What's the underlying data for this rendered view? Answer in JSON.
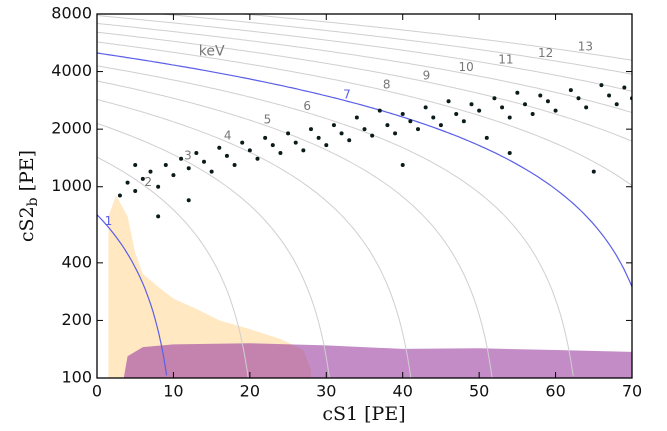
{
  "chart_data": {
    "type": "scatter",
    "xlabel": "cS1 [PE]",
    "ylabel": "cS2",
    "ylabel_sub": "b",
    "ylabel_unit": "[PE]",
    "xlim": [
      0,
      70
    ],
    "xticks": [
      0,
      10,
      20,
      30,
      40,
      50,
      60,
      70
    ],
    "ylim": [
      100,
      8000
    ],
    "yticks": [
      100,
      200,
      400,
      1000,
      2000,
      4000,
      8000
    ],
    "log_y": true,
    "contour_unit": "keV",
    "energy_contours": [
      1,
      2,
      3,
      4,
      5,
      6,
      7,
      8,
      9,
      10,
      11,
      12,
      13
    ],
    "highlight_contours": [
      1,
      7
    ],
    "contour_color": "#cfcfcf",
    "highlight_color": "#5b5fe8",
    "regions": [
      {
        "color": "#ffd89a",
        "x": [
          1.5,
          1.5,
          2.5,
          4,
          5,
          6,
          8,
          10,
          13,
          16,
          20,
          24,
          27,
          28,
          28
        ],
        "y": [
          100,
          700,
          900,
          700,
          450,
          350,
          300,
          260,
          230,
          200,
          180,
          160,
          140,
          110,
          100
        ]
      },
      {
        "color": "#9b3fa0",
        "x": [
          3.5,
          4,
          6,
          10,
          20,
          30,
          40,
          50,
          60,
          70,
          70
        ],
        "y": [
          100,
          130,
          145,
          150,
          152,
          148,
          142,
          143,
          140,
          137,
          100
        ]
      }
    ],
    "series": [
      {
        "color": "#0b1a1a",
        "x": [
          3,
          4,
          5,
          6,
          7,
          8,
          9,
          10,
          11,
          12,
          13,
          14,
          15,
          16,
          17,
          18,
          19,
          20,
          21,
          22,
          23,
          24,
          25,
          26,
          27,
          28,
          29,
          30,
          31,
          32,
          33,
          34,
          35,
          36,
          37,
          38,
          39,
          40,
          41,
          42,
          43,
          44,
          45,
          46,
          47,
          48,
          49,
          50,
          51,
          52,
          53,
          54,
          55,
          56,
          57,
          58,
          59,
          60,
          62,
          63,
          64,
          66,
          67,
          68,
          69,
          70,
          40,
          54,
          65,
          8,
          5,
          12
        ],
        "y": [
          900,
          1050,
          950,
          1100,
          1200,
          1000,
          1300,
          1150,
          1400,
          1250,
          1500,
          1350,
          1200,
          1600,
          1450,
          1300,
          1700,
          1550,
          1400,
          1800,
          1650,
          1500,
          1900,
          1700,
          1550,
          2000,
          1800,
          1650,
          2100,
          1900,
          1750,
          2300,
          2000,
          1850,
          2500,
          2100,
          1900,
          2400,
          2200,
          2000,
          2600,
          2300,
          2100,
          2800,
          2400,
          2200,
          2700,
          2500,
          1800,
          2900,
          2600,
          2300,
          3100,
          2700,
          2400,
          3000,
          2800,
          2500,
          3200,
          2900,
          2600,
          3400,
          3000,
          2700,
          3300,
          2900,
          1300,
          1500,
          1200,
          700,
          1300,
          850
        ]
      }
    ]
  }
}
